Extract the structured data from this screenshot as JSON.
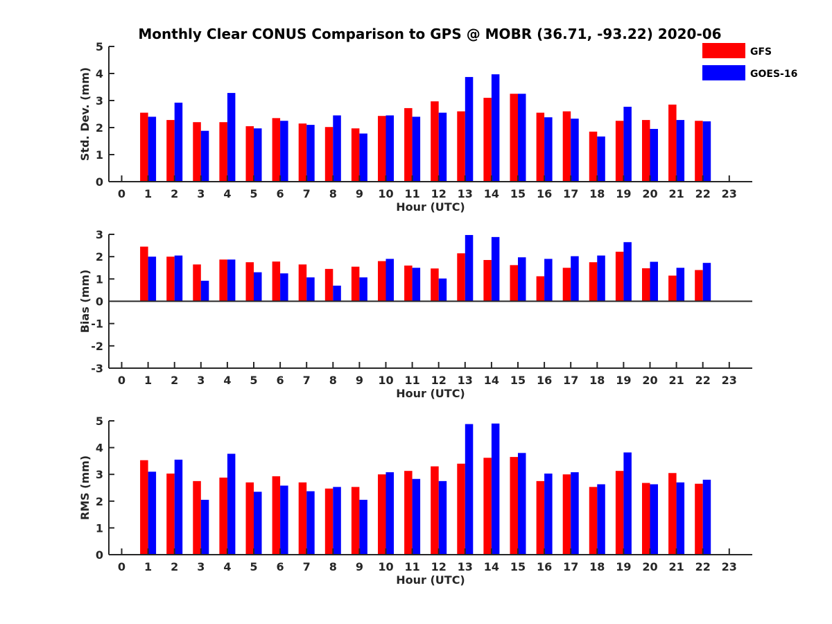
{
  "title": "Monthly Clear CONUS Comparison to GPS @ MOBR (36.71, -93.22) 2020-06",
  "colors": {
    "GFS": "#ff0000",
    "GOES-16": "#0000ff"
  },
  "legend": {
    "placement": "top-right",
    "entries": [
      "GFS",
      "GOES-16"
    ]
  },
  "chart_data": [
    {
      "type": "bar",
      "x": [
        0,
        1,
        2,
        3,
        4,
        5,
        6,
        7,
        8,
        9,
        10,
        11,
        12,
        13,
        14,
        15,
        16,
        17,
        18,
        19,
        20,
        21,
        22,
        23
      ],
      "xticks": [
        "0",
        "1",
        "2",
        "3",
        "4",
        "5",
        "6",
        "7",
        "8",
        "9",
        "10",
        "11",
        "12",
        "13",
        "14",
        "15",
        "16",
        "17",
        "18",
        "19",
        "20",
        "21",
        "22",
        "23"
      ],
      "xlabel": "Hour (UTC)",
      "ylabel": "Std. Dev. (mm)",
      "ylim": [
        0,
        5
      ],
      "yticks": [
        "0",
        "1",
        "2",
        "3",
        "4",
        "5"
      ],
      "series": [
        {
          "name": "GFS",
          "x": [
            1,
            2,
            3,
            4,
            5,
            6,
            7,
            8,
            9,
            10,
            11,
            12,
            13,
            14,
            15,
            16,
            17,
            18,
            19,
            20,
            21,
            22
          ],
          "values": [
            2.55,
            2.28,
            2.2,
            2.2,
            2.05,
            2.35,
            2.15,
            2.02,
            1.97,
            2.43,
            2.72,
            2.97,
            2.6,
            3.1,
            3.25,
            2.55,
            2.6,
            1.85,
            2.25,
            2.28,
            2.85,
            2.25
          ]
        },
        {
          "name": "GOES-16",
          "x": [
            1,
            2,
            3,
            4,
            5,
            6,
            7,
            8,
            9,
            10,
            11,
            12,
            13,
            14,
            15,
            16,
            17,
            18,
            19,
            20,
            21,
            22
          ],
          "values": [
            2.4,
            2.92,
            1.88,
            3.28,
            1.97,
            2.25,
            2.1,
            2.45,
            1.78,
            2.45,
            2.4,
            2.55,
            3.87,
            3.97,
            3.25,
            2.38,
            2.33,
            1.67,
            2.77,
            1.95,
            2.28,
            2.23
          ]
        }
      ]
    },
    {
      "type": "bar",
      "x": [
        0,
        1,
        2,
        3,
        4,
        5,
        6,
        7,
        8,
        9,
        10,
        11,
        12,
        13,
        14,
        15,
        16,
        17,
        18,
        19,
        20,
        21,
        22,
        23
      ],
      "xticks": [
        "0",
        "1",
        "2",
        "3",
        "4",
        "5",
        "6",
        "7",
        "8",
        "9",
        "10",
        "11",
        "12",
        "13",
        "14",
        "15",
        "16",
        "17",
        "18",
        "19",
        "20",
        "21",
        "22",
        "23"
      ],
      "xlabel": "Hour (UTC)",
      "ylabel": "Bias (mm)",
      "ylim": [
        -3,
        3
      ],
      "yticks": [
        "-3",
        "-2",
        "-1",
        "0",
        "1",
        "2",
        "3"
      ],
      "series": [
        {
          "name": "GFS",
          "x": [
            1,
            2,
            3,
            4,
            5,
            6,
            7,
            8,
            9,
            10,
            11,
            12,
            13,
            14,
            15,
            16,
            17,
            18,
            19,
            20,
            21,
            22
          ],
          "values": [
            2.45,
            2.0,
            1.65,
            1.87,
            1.75,
            1.78,
            1.65,
            1.45,
            1.55,
            1.8,
            1.6,
            1.47,
            2.15,
            1.85,
            1.62,
            1.12,
            1.5,
            1.75,
            2.22,
            1.48,
            1.15,
            1.4
          ]
        },
        {
          "name": "GOES-16",
          "x": [
            1,
            2,
            3,
            4,
            5,
            6,
            7,
            8,
            9,
            10,
            11,
            12,
            13,
            14,
            15,
            16,
            17,
            18,
            19,
            20,
            21,
            22
          ],
          "values": [
            2.0,
            2.05,
            0.92,
            1.87,
            1.3,
            1.25,
            1.07,
            0.7,
            1.07,
            1.9,
            1.5,
            1.02,
            2.97,
            2.88,
            1.97,
            1.9,
            2.02,
            2.05,
            2.65,
            1.77,
            1.5,
            1.72
          ]
        }
      ]
    },
    {
      "type": "bar",
      "x": [
        0,
        1,
        2,
        3,
        4,
        5,
        6,
        7,
        8,
        9,
        10,
        11,
        12,
        13,
        14,
        15,
        16,
        17,
        18,
        19,
        20,
        21,
        22,
        23
      ],
      "xticks": [
        "0",
        "1",
        "2",
        "3",
        "4",
        "5",
        "6",
        "7",
        "8",
        "9",
        "10",
        "11",
        "12",
        "13",
        "14",
        "15",
        "16",
        "17",
        "18",
        "19",
        "20",
        "21",
        "22",
        "23"
      ],
      "xlabel": "Hour (UTC)",
      "ylabel": "RMS (mm)",
      "ylim": [
        0,
        5
      ],
      "yticks": [
        "0",
        "1",
        "2",
        "3",
        "4",
        "5"
      ],
      "series": [
        {
          "name": "GFS",
          "x": [
            1,
            2,
            3,
            4,
            5,
            6,
            7,
            8,
            9,
            10,
            11,
            12,
            13,
            14,
            15,
            16,
            17,
            18,
            19,
            20,
            21,
            22
          ],
          "values": [
            3.53,
            3.03,
            2.75,
            2.88,
            2.7,
            2.93,
            2.7,
            2.47,
            2.53,
            3.0,
            3.13,
            3.3,
            3.4,
            3.62,
            3.65,
            2.75,
            3.0,
            2.53,
            3.13,
            2.68,
            3.05,
            2.65
          ]
        },
        {
          "name": "GOES-16",
          "x": [
            1,
            2,
            3,
            4,
            5,
            6,
            7,
            8,
            9,
            10,
            11,
            12,
            13,
            14,
            15,
            16,
            17,
            18,
            19,
            20,
            21,
            22
          ],
          "values": [
            3.1,
            3.55,
            2.05,
            3.77,
            2.35,
            2.58,
            2.37,
            2.53,
            2.05,
            3.08,
            2.83,
            2.75,
            4.88,
            4.9,
            3.8,
            3.03,
            3.08,
            2.63,
            3.82,
            2.63,
            2.7,
            2.8
          ]
        }
      ]
    }
  ]
}
